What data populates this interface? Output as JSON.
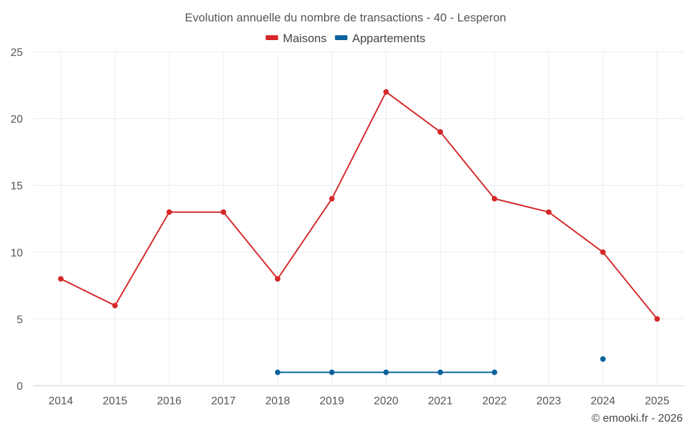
{
  "chart_data": {
    "type": "line",
    "title": "Evolution annuelle du nombre de transactions - 40 - Lesperon",
    "xlabel": "",
    "ylabel": "",
    "categories": [
      "2014",
      "2015",
      "2016",
      "2017",
      "2018",
      "2019",
      "2020",
      "2021",
      "2022",
      "2023",
      "2024",
      "2025"
    ],
    "ylim": [
      0,
      25
    ],
    "yticks": [
      "0",
      "5",
      "10",
      "15",
      "20",
      "25"
    ],
    "grid": true,
    "legend_position": "top-center",
    "series": [
      {
        "name": "Maisons",
        "color": "#d62728",
        "values": [
          8,
          6,
          13,
          13,
          8,
          14,
          22,
          19,
          14,
          13,
          10,
          5
        ]
      },
      {
        "name": "Appartements",
        "color": "#08629b",
        "values": [
          null,
          null,
          null,
          null,
          1,
          1,
          1,
          1,
          1,
          null,
          2,
          null
        ]
      }
    ]
  },
  "credit": "© emooki.fr - 2026"
}
